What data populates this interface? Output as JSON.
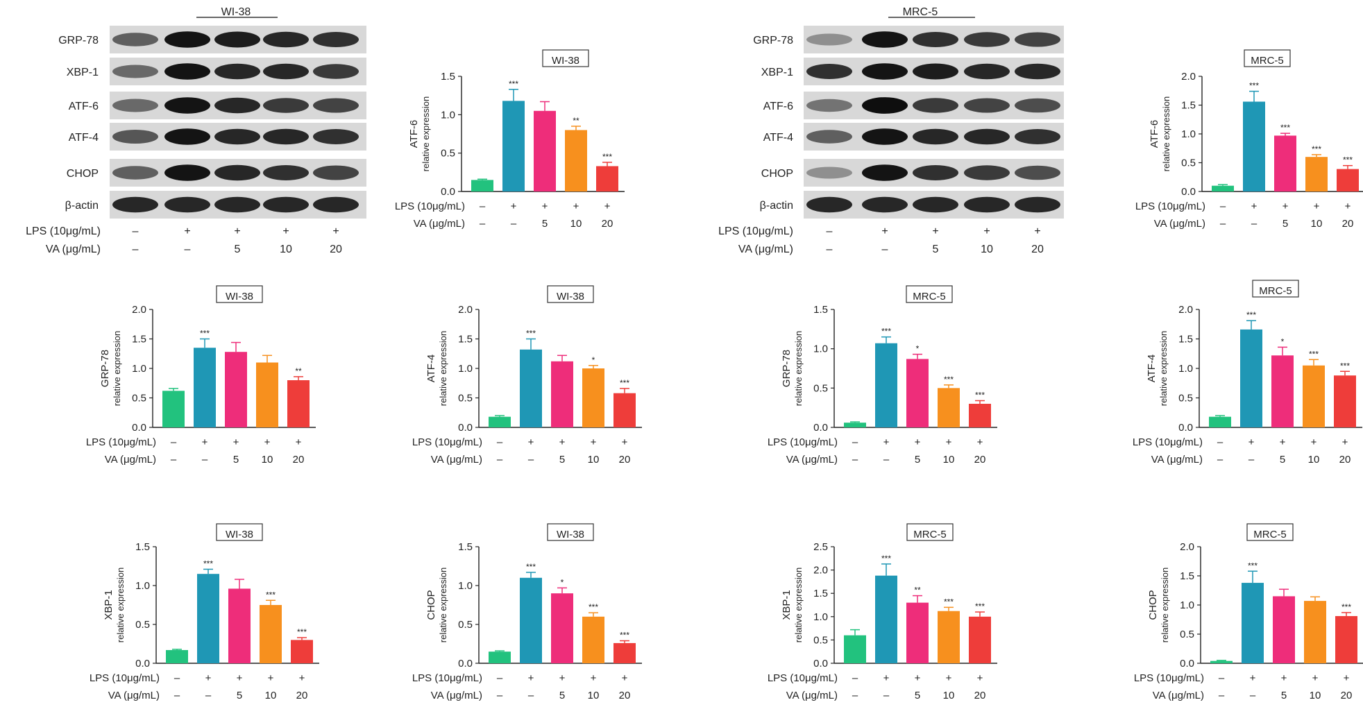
{
  "colors": [
    "#22c27e",
    "#1f97b5",
    "#ee2d7a",
    "#f7901e",
    "#ee3d3a"
  ],
  "lps_label": "LPS (10μg/mL)",
  "va_label": "VA (μg/mL)",
  "lps_values": [
    "–",
    "+",
    "+",
    "+",
    "+"
  ],
  "va_values": [
    "–",
    "–",
    "5",
    "10",
    "20"
  ],
  "ylabel_sub": "relative expression",
  "blots": [
    {
      "title": "WI-38",
      "bands": [
        "GRP-78",
        "XBP-1",
        "ATF-6",
        "ATF-4",
        "CHOP",
        "β-actin"
      ]
    },
    {
      "title": "MRC-5",
      "bands": [
        "GRP-78",
        "XBP-1",
        "ATF-6",
        "ATF-4",
        "CHOP",
        "β-actin"
      ]
    }
  ],
  "chart_data": [
    {
      "type": "bar",
      "title": "WI-38",
      "ylabel": "ATF-6",
      "ylim": [
        0,
        1.5
      ],
      "yticks": [
        "0.0",
        "0.5",
        "1.0",
        "1.5"
      ],
      "values": [
        0.15,
        1.18,
        1.05,
        0.8,
        0.33
      ],
      "errors": [
        0.01,
        0.15,
        0.12,
        0.05,
        0.05
      ],
      "sig": [
        "",
        "***",
        "",
        "**",
        "***"
      ]
    },
    {
      "type": "bar",
      "title": "MRC-5",
      "ylabel": "ATF-6",
      "ylim": [
        0,
        2.0
      ],
      "yticks": [
        "0.0",
        "0.5",
        "1.0",
        "1.5",
        "2.0"
      ],
      "values": [
        0.1,
        1.56,
        0.97,
        0.6,
        0.39
      ],
      "errors": [
        0.02,
        0.18,
        0.04,
        0.04,
        0.06
      ],
      "sig": [
        "",
        "***",
        "***",
        "***",
        "***"
      ]
    },
    {
      "type": "bar",
      "title": "WI-38",
      "ylabel": "GRP-78",
      "ylim": [
        0,
        2.0
      ],
      "yticks": [
        "0.0",
        "0.5",
        "1.0",
        "1.5",
        "2.0"
      ],
      "values": [
        0.62,
        1.35,
        1.28,
        1.1,
        0.8
      ],
      "errors": [
        0.04,
        0.15,
        0.16,
        0.12,
        0.06
      ],
      "sig": [
        "",
        "***",
        "",
        "",
        "**"
      ]
    },
    {
      "type": "bar",
      "title": "WI-38",
      "ylabel": "ATF-4",
      "ylim": [
        0,
        2.0
      ],
      "yticks": [
        "0.0",
        "0.5",
        "1.0",
        "1.5",
        "2.0"
      ],
      "values": [
        0.18,
        1.32,
        1.12,
        1.0,
        0.58
      ],
      "errors": [
        0.02,
        0.18,
        0.1,
        0.05,
        0.08
      ],
      "sig": [
        "",
        "***",
        "",
        "*",
        "***"
      ]
    },
    {
      "type": "bar",
      "title": "MRC-5",
      "ylabel": "GRP-78",
      "ylim": [
        0,
        1.5
      ],
      "yticks": [
        "0.0",
        "0.5",
        "1.0",
        "1.5"
      ],
      "values": [
        0.06,
        1.07,
        0.87,
        0.5,
        0.3
      ],
      "errors": [
        0.01,
        0.08,
        0.06,
        0.04,
        0.04
      ],
      "sig": [
        "",
        "***",
        "*",
        "***",
        "***"
      ]
    },
    {
      "type": "bar",
      "title": "MRC-5",
      "ylabel": "ATF-4",
      "ylim": [
        0,
        2.0
      ],
      "yticks": [
        "0.0",
        "0.5",
        "1.0",
        "1.5",
        "2.0"
      ],
      "values": [
        0.18,
        1.66,
        1.22,
        1.05,
        0.88
      ],
      "errors": [
        0.02,
        0.15,
        0.14,
        0.1,
        0.07
      ],
      "sig": [
        "",
        "***",
        "*",
        "***",
        "***"
      ]
    },
    {
      "type": "bar",
      "title": "WI-38",
      "ylabel": "XBP-1",
      "ylim": [
        0,
        1.5
      ],
      "yticks": [
        "0.0",
        "0.5",
        "1.0",
        "1.5"
      ],
      "values": [
        0.17,
        1.15,
        0.96,
        0.75,
        0.3
      ],
      "errors": [
        0.01,
        0.06,
        0.12,
        0.06,
        0.03
      ],
      "sig": [
        "",
        "***",
        "",
        "***",
        "***"
      ]
    },
    {
      "type": "bar",
      "title": "WI-38",
      "ylabel": "CHOP",
      "ylim": [
        0,
        1.5
      ],
      "yticks": [
        "0.0",
        "0.5",
        "1.0",
        "1.5"
      ],
      "values": [
        0.15,
        1.1,
        0.9,
        0.6,
        0.26
      ],
      "errors": [
        0.01,
        0.07,
        0.07,
        0.05,
        0.03
      ],
      "sig": [
        "",
        "***",
        "*",
        "***",
        "***"
      ]
    },
    {
      "type": "bar",
      "title": "MRC-5",
      "ylabel": "XBP-1",
      "ylim": [
        0,
        2.5
      ],
      "yticks": [
        "0.0",
        "0.5",
        "1.0",
        "1.5",
        "2.0",
        "2.5"
      ],
      "values": [
        0.6,
        1.88,
        1.3,
        1.12,
        1.0
      ],
      "errors": [
        0.12,
        0.25,
        0.15,
        0.08,
        0.1
      ],
      "sig": [
        "",
        "***",
        "**",
        "***",
        "***"
      ]
    },
    {
      "type": "bar",
      "title": "MRC-5",
      "ylabel": "CHOP",
      "ylim": [
        0,
        2.0
      ],
      "yticks": [
        "0.0",
        "0.5",
        "1.0",
        "1.5",
        "2.0"
      ],
      "values": [
        0.04,
        1.38,
        1.15,
        1.07,
        0.81
      ],
      "errors": [
        0.01,
        0.2,
        0.12,
        0.07,
        0.06
      ],
      "sig": [
        "",
        "***",
        "",
        "",
        "***"
      ]
    }
  ]
}
